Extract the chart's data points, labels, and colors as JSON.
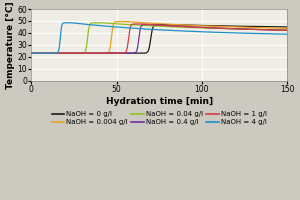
{
  "title": "",
  "xlabel": "Hydration time [min]",
  "ylabel": "Temperature [°C]",
  "xlim": [
    0,
    150
  ],
  "ylim": [
    0,
    60
  ],
  "xticks": [
    0,
    50,
    100,
    150
  ],
  "yticks": [
    0,
    10,
    20,
    30,
    40,
    50,
    60
  ],
  "background_color": "#ccc9c0",
  "plot_bg_color": "#f0ede6",
  "grid_color": "#ffffff",
  "series": [
    {
      "label": "NaOH = 0 g/l",
      "color": "#1a1a1a",
      "t_inflect": 70,
      "t_rise": 6,
      "peak_temp": 47.0,
      "t_peak_hold": 3,
      "final_temp": 43.5,
      "decay_rate": 0.012
    },
    {
      "label": "NaOH = 0.004 g/l",
      "color": "#e8a020",
      "t_inflect": 47,
      "t_rise": 5,
      "peak_temp": 49.5,
      "t_peak_hold": 3,
      "final_temp": 41.5,
      "decay_rate": 0.013
    },
    {
      "label": "NaOH = 0.04 g/l",
      "color": "#90c020",
      "t_inflect": 33,
      "t_rise": 5,
      "peak_temp": 48.5,
      "t_peak_hold": 2,
      "final_temp": 40.5,
      "decay_rate": 0.013
    },
    {
      "label": "NaOH = 0.4 g/l",
      "color": "#7030a0",
      "t_inflect": 63,
      "t_rise": 5,
      "peak_temp": 47.0,
      "t_peak_hold": 2,
      "final_temp": 39.5,
      "decay_rate": 0.013
    },
    {
      "label": "NaOH = 1 g/l",
      "color": "#d04040",
      "t_inflect": 57,
      "t_rise": 5,
      "peak_temp": 47.5,
      "t_peak_hold": 2,
      "final_temp": 39.5,
      "decay_rate": 0.013
    },
    {
      "label": "NaOH = 4 g/l",
      "color": "#2090c8",
      "t_inflect": 17,
      "t_rise": 4,
      "peak_temp": 48.5,
      "t_peak_hold": 2,
      "final_temp": 37.0,
      "decay_rate": 0.014
    }
  ],
  "init_temp": 23.0,
  "legend_fontsize": 5.0,
  "axis_fontsize": 6.5,
  "tick_fontsize": 5.5
}
